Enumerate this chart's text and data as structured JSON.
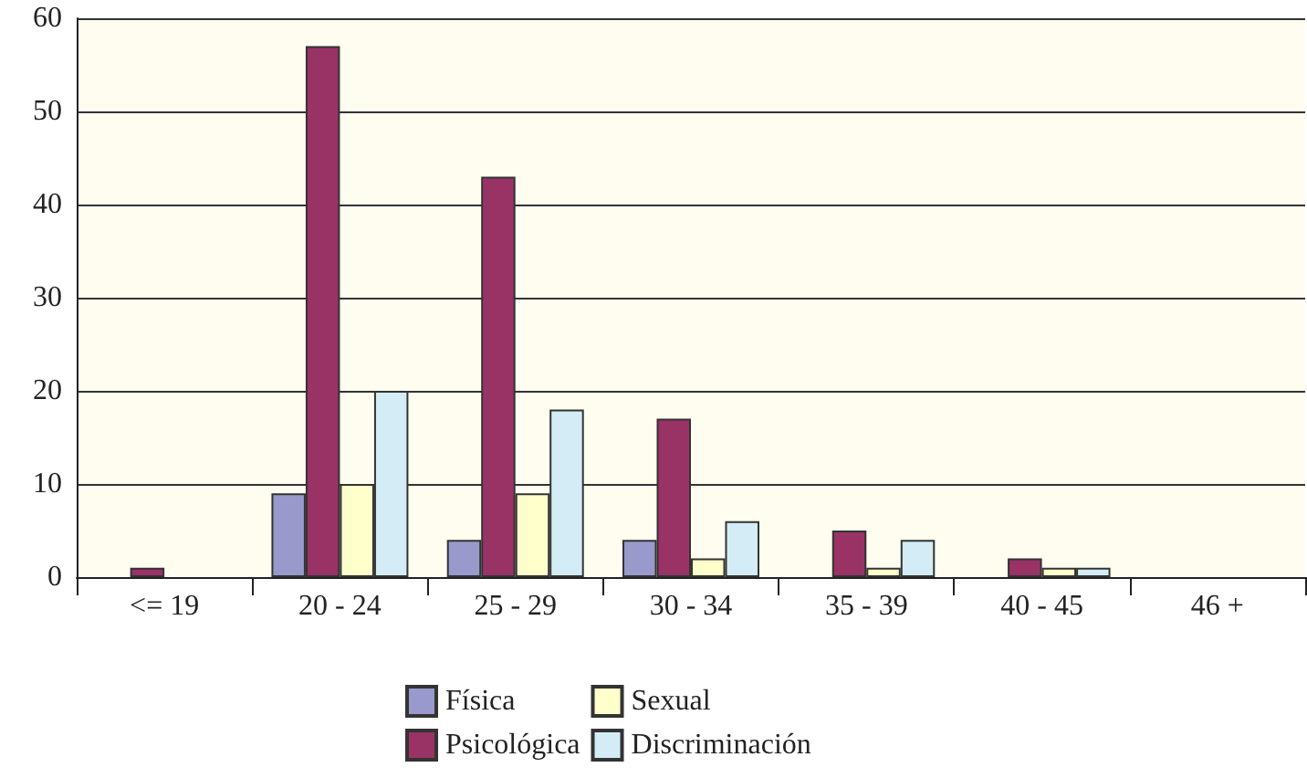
{
  "chart_data": {
    "type": "bar",
    "categories": [
      "<= 19",
      "20 - 24",
      "25 - 29",
      "30 - 34",
      "35 - 39",
      "40 - 45",
      "46 +"
    ],
    "series": [
      {
        "name": "Física",
        "color": "#9999cc",
        "values": [
          null,
          9,
          4,
          4,
          null,
          null,
          null
        ]
      },
      {
        "name": "Psicológica",
        "color": "#993366",
        "values": [
          1,
          57,
          43,
          17,
          5,
          2,
          null
        ]
      },
      {
        "name": "Sexual",
        "color": "#ffffcc",
        "values": [
          null,
          10,
          9,
          2,
          1,
          1,
          null
        ]
      },
      {
        "name": "Discriminación",
        "color": "#d4ecf5",
        "values": [
          null,
          20,
          18,
          6,
          4,
          1,
          null
        ]
      }
    ],
    "ylim": [
      0,
      60
    ],
    "yticks": [
      0,
      10,
      20,
      30,
      40,
      50,
      60
    ],
    "grid": "y",
    "legend": "bottom"
  }
}
